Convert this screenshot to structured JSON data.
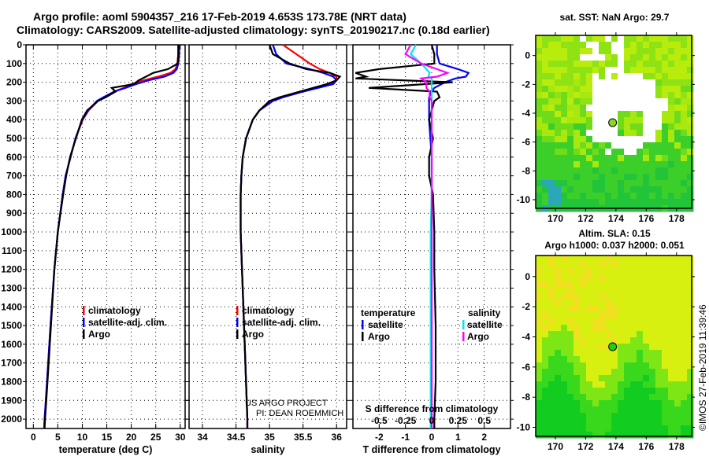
{
  "title": {
    "line1": "Argo profile: aoml 5904357_216 17-Feb-2019 4.653S 173.78E (NRT data)",
    "line2": "Climatology: CARS2009. Satellite-adjusted climatology: synTS_20190217.nc (0.18d earlier)"
  },
  "credit": {
    "line1": "US ARGO PROJECT",
    "line2": "PI: DEAN ROEMMICH"
  },
  "timestamp": "©IMOS 27-Feb-2019 11:39:46",
  "colors": {
    "climatology": "#ff0000",
    "satellite": "#0000ff",
    "argo": "#000000",
    "sal_satellite": "#00e5ee",
    "sal_argo": "#ff00ff"
  },
  "chart_data": [
    {
      "type": "line",
      "name": "temperature",
      "xlabel": "temperature (deg C)",
      "xlim": [
        -1.5,
        31
      ],
      "ylim": [
        2050,
        0
      ],
      "xticks": [
        0,
        5,
        10,
        15,
        20,
        25,
        30
      ],
      "yticks": [
        0,
        100,
        200,
        300,
        400,
        500,
        600,
        700,
        800,
        900,
        1000,
        1100,
        1200,
        1300,
        1400,
        1500,
        1600,
        1700,
        1800,
        1900,
        2000
      ],
      "grid": true,
      "legend": [
        "climatology",
        "satellite-adj. clim.",
        "Argo"
      ],
      "legend_placement": "bottom-center",
      "depth": [
        0,
        50,
        100,
        130,
        150,
        170,
        190,
        210,
        230,
        250,
        280,
        300,
        350,
        400,
        500,
        600,
        700,
        800,
        1000,
        1200,
        1500,
        1800,
        2000,
        2050
      ],
      "series": [
        {
          "name": "climatology",
          "values": [
            29.6,
            29.6,
            29.4,
            29.0,
            28.0,
            25.5,
            22.5,
            20,
            18.5,
            16.5,
            14.5,
            13.2,
            11.3,
            10.1,
            8.6,
            7.6,
            6.6,
            6.0,
            5.0,
            4.3,
            3.5,
            2.8,
            2.3,
            2.2
          ]
        },
        {
          "name": "satellite-adj. clim.",
          "values": [
            29.8,
            29.8,
            29.6,
            29.3,
            28.6,
            26.8,
            23.5,
            21,
            18.8,
            16.5,
            14.3,
            13.0,
            11.2,
            10.0,
            8.6,
            7.6,
            6.6,
            6.0,
            5.0,
            4.3,
            3.5,
            2.8,
            2.3,
            2.2
          ]
        },
        {
          "name": "Argo",
          "values": [
            29.6,
            29.6,
            29.5,
            27.5,
            24.5,
            23.0,
            21.5,
            20.5,
            16.0,
            16.8,
            14.8,
            13.2,
            11.0,
            9.9,
            8.7,
            7.5,
            6.7,
            6.1,
            5.0,
            4.3,
            3.6,
            2.9,
            2.4,
            2.3
          ]
        }
      ]
    },
    {
      "type": "line",
      "name": "salinity",
      "xlabel": "salinity",
      "xlim": [
        33.8,
        36.15
      ],
      "ylim": [
        2050,
        0
      ],
      "xticks": [
        34,
        34.5,
        35,
        35.5,
        36
      ],
      "grid": true,
      "legend": [
        "climatology",
        "satellite-adj. clim.",
        "Argo"
      ],
      "legend_placement": "bottom-center",
      "depth": [
        0,
        50,
        100,
        130,
        150,
        170,
        190,
        210,
        250,
        280,
        300,
        350,
        400,
        500,
        600,
        700,
        800,
        1000,
        1200,
        1500,
        1800,
        2000,
        2050
      ],
      "series": [
        {
          "name": "climatology",
          "values": [
            35.2,
            35.4,
            35.6,
            35.75,
            35.9,
            36.0,
            36.0,
            35.9,
            35.5,
            35.2,
            35.05,
            34.85,
            34.75,
            34.65,
            34.6,
            34.58,
            34.57,
            34.57,
            34.59,
            34.62,
            34.65,
            34.67,
            34.67
          ]
        },
        {
          "name": "satellite-adj. clim.",
          "values": [
            35.05,
            35.1,
            35.25,
            35.6,
            35.8,
            35.95,
            36.0,
            35.95,
            35.5,
            35.2,
            35.05,
            34.85,
            34.75,
            34.65,
            34.6,
            34.58,
            34.57,
            34.57,
            34.59,
            34.62,
            34.65,
            34.67,
            34.67
          ]
        },
        {
          "name": "Argo",
          "values": [
            35.0,
            35.05,
            35.3,
            35.55,
            35.9,
            36.05,
            36.0,
            35.85,
            35.45,
            35.15,
            35.0,
            34.85,
            34.75,
            34.65,
            34.6,
            34.58,
            34.57,
            34.57,
            34.59,
            34.62,
            34.65,
            34.67,
            34.67
          ]
        }
      ]
    },
    {
      "type": "line",
      "name": "difference",
      "xlabel": "T difference from climatology",
      "xlabel_top": "S difference from climatology",
      "xlim": [
        -3,
        3
      ],
      "s_xlim": [
        -0.75,
        0.75
      ],
      "ylim": [
        2050,
        0
      ],
      "xticks": [
        -2,
        -1,
        0,
        1,
        2
      ],
      "s_xticks": [
        -0.5,
        -0.25,
        0,
        0.25,
        0.5
      ],
      "legend_title_t": "temperature",
      "legend_title_s": "salinity",
      "legend_t": [
        "satellite",
        "Argo"
      ],
      "legend_s": [
        "satellite",
        "Argo"
      ],
      "depth": [
        0,
        50,
        100,
        130,
        150,
        170,
        180,
        200,
        230,
        250,
        280,
        300,
        400,
        500,
        600,
        700,
        800,
        1000,
        1200,
        1500,
        1800,
        2000,
        2050
      ],
      "series": [
        {
          "name": "T satellite",
          "values": [
            0.2,
            0.2,
            0.3,
            1.0,
            1.4,
            1.3,
            0.9,
            0.5,
            0.1,
            0.0,
            -0.1,
            -0.1,
            -0.1,
            -0.05,
            0,
            0,
            0,
            0,
            0,
            0,
            0,
            0,
            0
          ]
        },
        {
          "name": "T Argo",
          "values": [
            0,
            0.1,
            0.1,
            -2.0,
            -2.9,
            -2.5,
            -2.9,
            0.8,
            -2.4,
            0.2,
            0.3,
            0.1,
            -0.1,
            0.05,
            -0.1,
            -0.1,
            0.05,
            0.1,
            0.1,
            0.15,
            0.15,
            0.1,
            0.1
          ]
        },
        {
          "name": "S satellite",
          "values": [
            -0.15,
            -0.2,
            -0.1,
            -0.05,
            -0.02,
            -0.03,
            0,
            0,
            0,
            0,
            0,
            0,
            0,
            0,
            0,
            0,
            0,
            -0.01,
            -0.01,
            -0.01,
            -0.01,
            -0.01,
            -0.01
          ]
        },
        {
          "name": "S Argo",
          "values": [
            -0.2,
            -0.25,
            -0.1,
            0.05,
            0.15,
            0.05,
            -0.1,
            -0.05,
            -0.05,
            -0.02,
            -0.02,
            0,
            0,
            0,
            0,
            0,
            0,
            0,
            0,
            0,
            0,
            0,
            0
          ]
        }
      ]
    }
  ],
  "maps": [
    {
      "title1": "sat. SST: NaN Argo: 29.7",
      "title2": "",
      "xticks": [
        170,
        172,
        174,
        176,
        178
      ],
      "yticks": [
        0,
        -2,
        -4,
        -6,
        -8,
        -10
      ],
      "xlim": [
        168.7,
        179
      ],
      "ylim": [
        -10.6,
        1.4
      ],
      "argo_lon": 173.78,
      "argo_lat": -4.653
    },
    {
      "title1": "Altim. SLA: 0.15",
      "title2": "Argo h1000: 0.037 h2000: 0.051",
      "xticks": [
        170,
        172,
        174,
        176,
        178
      ],
      "yticks": [
        0,
        -2,
        -4,
        -6,
        -8,
        -10
      ],
      "xlim": [
        168.7,
        179
      ],
      "ylim": [
        -10.6,
        1.4
      ],
      "argo_lon": 173.78,
      "argo_lat": -4.653
    }
  ]
}
